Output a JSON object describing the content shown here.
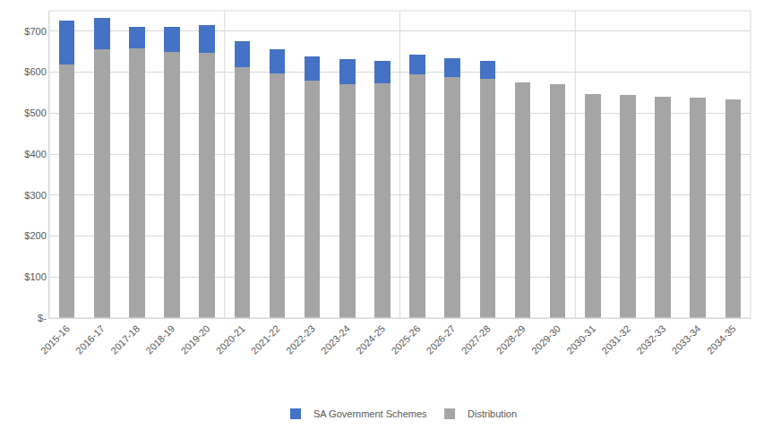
{
  "chart_data": {
    "type": "bar",
    "stacked": true,
    "categories": [
      "2015-16",
      "2016-17",
      "2017-18",
      "2018-19",
      "2019-20",
      "2020-21",
      "2021-22",
      "2022-23",
      "2023-24",
      "2024-25",
      "2025-26",
      "2026-27",
      "2027-28",
      "2028-29",
      "2029-30",
      "2030-31",
      "2031-32",
      "2032-33",
      "2033-34",
      "2034-35"
    ],
    "series": [
      {
        "name": "Distribution",
        "color": "#a5a5a5",
        "values": [
          618,
          656,
          658,
          649,
          647,
          613,
          596,
          580,
          571,
          572,
          595,
          589,
          583,
          576,
          570,
          547,
          544,
          540,
          537,
          534
        ]
      },
      {
        "name": "SA Government Schemes",
        "color": "#4472c4",
        "values": [
          109,
          77,
          53,
          62,
          68,
          62,
          59,
          58,
          61,
          55,
          48,
          46,
          44,
          null,
          null,
          null,
          null,
          null,
          null,
          null
        ]
      }
    ],
    "ylim": [
      0,
      750
    ],
    "yticks": [
      {
        "value": 0,
        "label": "$-"
      },
      {
        "value": 100,
        "label": "$100"
      },
      {
        "value": 200,
        "label": "$200"
      },
      {
        "value": 300,
        "label": "$300"
      },
      {
        "value": 400,
        "label": "$400"
      },
      {
        "value": 500,
        "label": "$500"
      },
      {
        "value": 600,
        "label": "$600"
      },
      {
        "value": 700,
        "label": "$700"
      }
    ],
    "grid": true,
    "legend": "bottom"
  }
}
